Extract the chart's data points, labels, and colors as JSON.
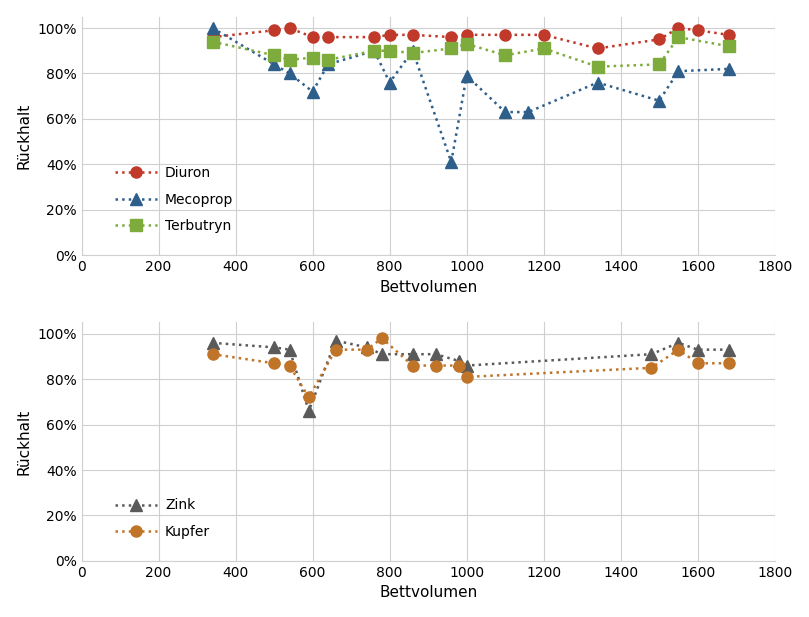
{
  "top": {
    "diuron_x": [
      340,
      500,
      540,
      600,
      640,
      760,
      800,
      860,
      960,
      1000,
      1100,
      1200,
      1340,
      1500,
      1550,
      1600,
      1680
    ],
    "diuron_y": [
      0.96,
      0.99,
      1.0,
      0.96,
      0.96,
      0.96,
      0.97,
      0.97,
      0.96,
      0.97,
      0.97,
      0.97,
      0.91,
      0.95,
      1.0,
      0.99,
      0.97
    ],
    "mecoprop_x": [
      340,
      500,
      540,
      600,
      640,
      760,
      800,
      860,
      960,
      1000,
      1100,
      1160,
      1340,
      1500,
      1550,
      1680
    ],
    "mecoprop_y": [
      1.0,
      0.84,
      0.8,
      0.72,
      0.84,
      0.9,
      0.76,
      0.9,
      0.41,
      0.79,
      0.63,
      0.63,
      0.76,
      0.68,
      0.81,
      0.82
    ],
    "terbutryn_x": [
      340,
      500,
      540,
      600,
      640,
      760,
      800,
      860,
      960,
      1000,
      1100,
      1200,
      1340,
      1500,
      1550,
      1680
    ],
    "terbutryn_y": [
      0.94,
      0.88,
      0.86,
      0.87,
      0.86,
      0.9,
      0.9,
      0.89,
      0.91,
      0.93,
      0.88,
      0.91,
      0.83,
      0.84,
      0.96,
      0.92
    ],
    "xlabel": "Bettvolumen",
    "ylabel": "Rückhalt",
    "xlim": [
      0,
      1800
    ],
    "ylim": [
      0,
      1.05
    ],
    "yticks": [
      0,
      0.2,
      0.4,
      0.6,
      0.8,
      1.0
    ],
    "ytick_labels": [
      "0%",
      "20%",
      "40%",
      "60%",
      "80%",
      "100%"
    ],
    "xticks": [
      0,
      200,
      400,
      600,
      800,
      1000,
      1200,
      1400,
      1600,
      1800
    ],
    "diuron_color": "#c0392b",
    "mecoprop_color": "#2e5f8a",
    "terbutryn_color": "#7dab3c",
    "legend_labels": [
      "Diuron",
      "Mecoprop",
      "Terbutryn"
    ]
  },
  "bottom": {
    "zink_x": [
      340,
      500,
      540,
      590,
      660,
      740,
      780,
      860,
      920,
      980,
      1000,
      1480,
      1550,
      1600,
      1680
    ],
    "zink_y": [
      0.96,
      0.94,
      0.93,
      0.66,
      0.97,
      0.94,
      0.91,
      0.91,
      0.91,
      0.88,
      0.86,
      0.91,
      0.96,
      0.93,
      0.93
    ],
    "kupfer_x": [
      340,
      500,
      540,
      590,
      660,
      740,
      780,
      860,
      920,
      980,
      1000,
      1480,
      1550,
      1600,
      1680
    ],
    "kupfer_y": [
      0.91,
      0.87,
      0.86,
      0.72,
      0.93,
      0.93,
      0.98,
      0.86,
      0.86,
      0.86,
      0.81,
      0.85,
      0.93,
      0.87,
      0.87
    ],
    "xlabel": "Bettvolumen",
    "ylabel": "Rückhalt",
    "xlim": [
      0,
      1800
    ],
    "ylim": [
      0,
      1.05
    ],
    "yticks": [
      0,
      0.2,
      0.4,
      0.6,
      0.8,
      1.0
    ],
    "ytick_labels": [
      "0%",
      "20%",
      "40%",
      "60%",
      "80%",
      "100%"
    ],
    "xticks": [
      0,
      200,
      400,
      600,
      800,
      1000,
      1200,
      1400,
      1600,
      1800
    ],
    "zink_color": "#5a5a5a",
    "kupfer_color": "#c07428",
    "legend_labels": [
      "Zink",
      "Kupfer"
    ]
  },
  "bg_color": "#ffffff",
  "plot_bg": "#ffffff",
  "grid_color": "#d0d0d0",
  "font_family": "sans-serif",
  "tick_fontsize": 10,
  "label_fontsize": 11
}
